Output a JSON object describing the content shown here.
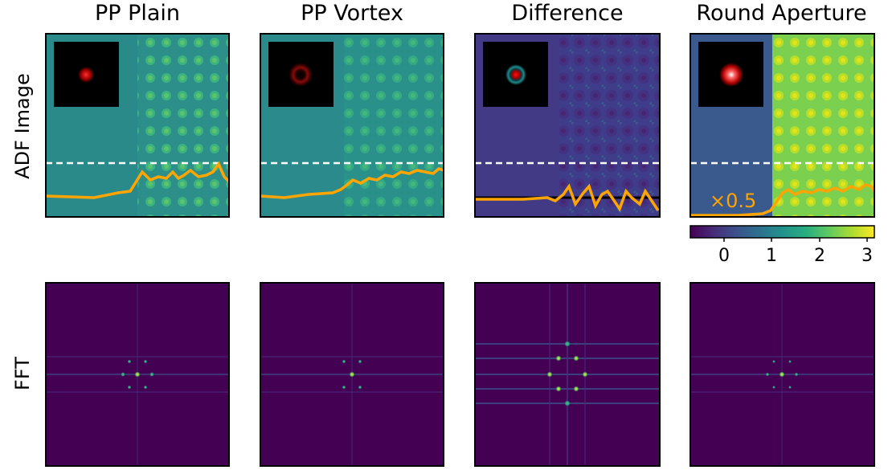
{
  "columns": {
    "plain": "PP Plain",
    "vortex": "PP Vortex",
    "difference": "Difference",
    "round": "Round Aperture"
  },
  "rows": {
    "adf": "ADF Image",
    "fft": "FFT"
  },
  "annotation": "×0.5",
  "colorbar": {
    "ticks": [
      "0",
      "1",
      "2",
      "3"
    ],
    "colormap": "viridis"
  },
  "colors": {
    "profile_line": "#ffa500",
    "dashed_line": "#ffffff",
    "fft_background": "#440154"
  },
  "chart_data": {
    "type": "image-grid",
    "colorbar_range": [
      -0.7,
      3.1
    ]
  }
}
